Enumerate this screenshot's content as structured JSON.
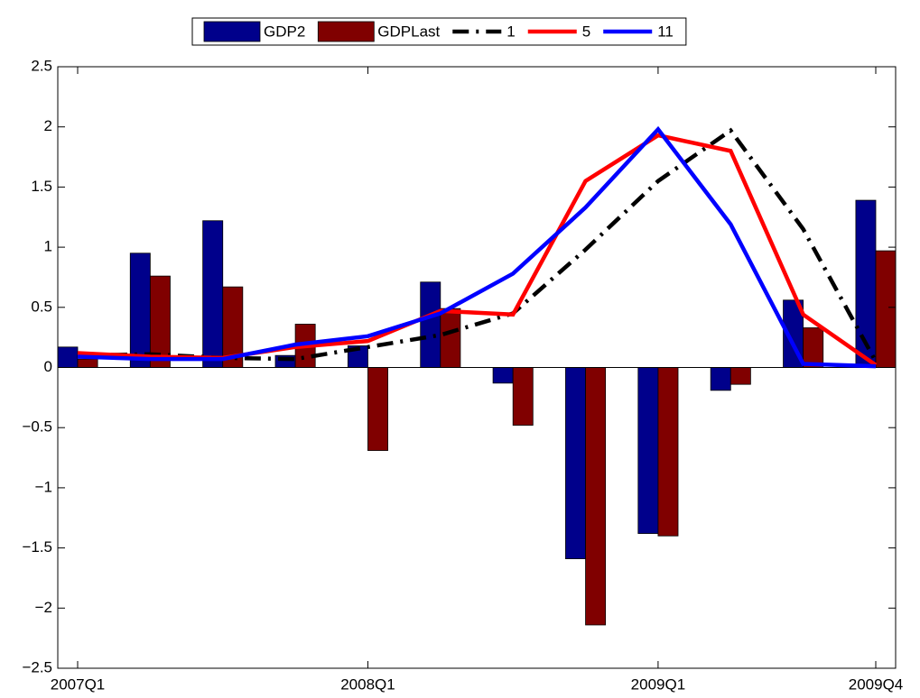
{
  "chart_data": {
    "type": "bar",
    "categories": [
      "2007Q1",
      null,
      null,
      null,
      "2008Q1",
      null,
      null,
      null,
      "2009Q1",
      null,
      null,
      "2009Q4"
    ],
    "series": [
      {
        "name": "GDP2",
        "type": "bar",
        "color": "#00008b",
        "values": [
          0.17,
          0.95,
          1.22,
          0.1,
          0.18,
          0.71,
          -0.13,
          -1.59,
          -1.38,
          -0.19,
          0.56,
          1.39
        ]
      },
      {
        "name": "GDPLast",
        "type": "bar",
        "color": "#800000",
        "values": [
          0.07,
          0.76,
          0.67,
          0.36,
          -0.69,
          0.49,
          -0.48,
          -2.14,
          -1.4,
          -0.14,
          0.33,
          0.97
        ]
      },
      {
        "name": "1",
        "type": "line",
        "style": "dash-dot",
        "color": "#000000",
        "values": [
          0.1,
          0.11,
          0.08,
          0.07,
          0.17,
          0.27,
          0.45,
          0.98,
          1.55,
          1.97,
          1.15,
          0.05
        ]
      },
      {
        "name": "5",
        "type": "line",
        "style": "solid",
        "color": "#ff0000",
        "values": [
          0.12,
          0.09,
          0.08,
          0.17,
          0.22,
          0.47,
          0.44,
          1.55,
          1.93,
          1.8,
          0.44,
          0.02
        ]
      },
      {
        "name": "11",
        "type": "line",
        "style": "solid",
        "color": "#0000ff",
        "values": [
          0.09,
          0.07,
          0.07,
          0.19,
          0.26,
          0.45,
          0.78,
          1.33,
          1.98,
          1.19,
          0.03,
          0.01
        ]
      }
    ],
    "ylim": [
      -2.5,
      2.5
    ],
    "yticks": [
      {
        "value": -2.5,
        "label": "−2.5"
      },
      {
        "value": -2,
        "label": "−2"
      },
      {
        "value": -1.5,
        "label": "−1.5"
      },
      {
        "value": -1,
        "label": "−1"
      },
      {
        "value": -0.5,
        "label": "−0.5"
      },
      0,
      0.5,
      1,
      1.5,
      2,
      2.5
    ],
    "grid": false,
    "legend": "top"
  }
}
